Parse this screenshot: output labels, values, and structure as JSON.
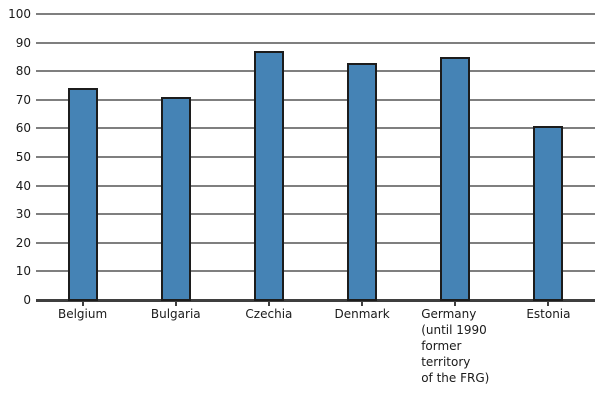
{
  "chart_data": {
    "type": "bar",
    "title": "",
    "xlabel": "",
    "ylabel": "",
    "categories": [
      "Belgium",
      "Bulgaria",
      "Czechia",
      "Denmark",
      "Germany (until 1990 former territory of the FRG)",
      "Estonia"
    ],
    "category_label_lines": [
      [
        "Belgium"
      ],
      [
        "Bulgaria"
      ],
      [
        "Czechia"
      ],
      [
        "Denmark"
      ],
      [
        "Germany",
        "(until 1990",
        "former",
        "territory",
        "of the FRG)"
      ],
      [
        "Estonia"
      ]
    ],
    "values": [
      74,
      71,
      87,
      83,
      85,
      61
    ],
    "ylim": [
      0,
      100
    ],
    "y_ticks": [
      0,
      10,
      20,
      30,
      40,
      50,
      60,
      70,
      80,
      90,
      100
    ],
    "grid": "horizontal",
    "legend": "none",
    "colors": {
      "bar_fill": "#4583b5",
      "bar_border": "#1c1c1c",
      "gridline": "#7f7f7f",
      "axis_line": "#3f3f3f",
      "tick_mark": "#3f3f3f",
      "text": "#1a1a1a",
      "background": "#ffffff"
    }
  }
}
